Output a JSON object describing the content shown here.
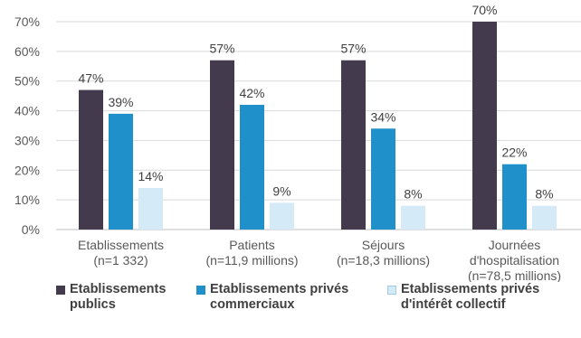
{
  "chart_data": {
    "type": "bar",
    "categories": [
      [
        "Etablissements",
        "(n=1 332)"
      ],
      [
        "Patients",
        "(n=11,9 millions)"
      ],
      [
        "Séjours",
        "(n=18,3 millions)"
      ],
      [
        "Journées",
        "d'hospitalisation",
        "(n=78,5 millions)"
      ]
    ],
    "series": [
      {
        "name": "Etablissements publics",
        "name_lines": [
          "Etablissements",
          "publics"
        ],
        "color": "#443a4e",
        "values": [
          47,
          57,
          57,
          70
        ]
      },
      {
        "name": "Etablissements privés commerciaux",
        "name_lines": [
          "Etablissements privés",
          "commerciaux"
        ],
        "color": "#1f90c9",
        "values": [
          39,
          42,
          34,
          22
        ]
      },
      {
        "name": "Etablissements privés d'intérêt collectif",
        "name_lines": [
          "Etablissements privés",
          "d'intérêt collectif"
        ],
        "color": "#d5eaf7",
        "values": [
          14,
          9,
          8,
          8
        ]
      }
    ],
    "data_labels": [
      [
        "47%",
        "57%",
        "57%",
        "70%"
      ],
      [
        "39%",
        "42%",
        "34%",
        "22%"
      ],
      [
        "14%",
        "9%",
        "8%",
        "8%"
      ]
    ],
    "y_ticks": [
      "0%",
      "10%",
      "20%",
      "30%",
      "40%",
      "50%",
      "60%",
      "70%"
    ],
    "ylim": [
      0,
      70
    ],
    "grid": true,
    "legend_position": "bottom",
    "title": "",
    "xlabel": "",
    "ylabel": ""
  }
}
